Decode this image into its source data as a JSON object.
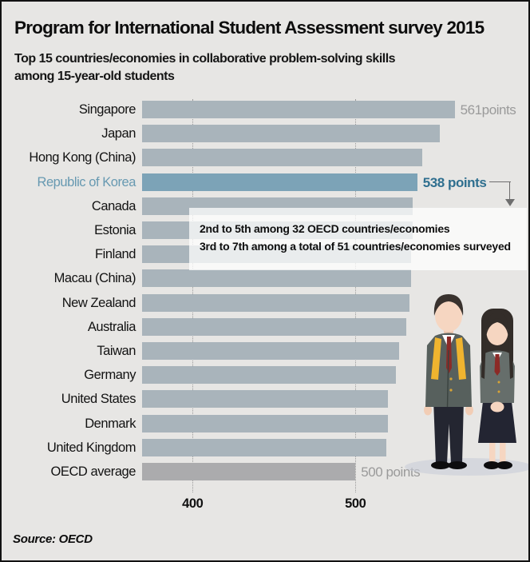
{
  "header": {
    "title": "Program for International Student Assessment survey 2015",
    "subtitle_line1": "Top 15 countries/economies in collaborative problem-solving skills",
    "subtitle_line2": "among 15-year-old students"
  },
  "chart_data": {
    "type": "bar",
    "orientation": "horizontal",
    "title": "Program for International Student Assessment survey 2015",
    "subtitle": "Top 15 countries/economies in collaborative problem-solving skills among 15-year-old students",
    "categories": [
      "Singapore",
      "Japan",
      "Hong Kong (China)",
      "Republic of Korea",
      "Canada",
      "Estonia",
      "Finland",
      "Macau (China)",
      "New Zealand",
      "Australia",
      "Taiwan",
      "Germany",
      "United States",
      "Denmark",
      "United Kingdom",
      "OECD average"
    ],
    "values": [
      561,
      552,
      541,
      538,
      535,
      535,
      534,
      534,
      533,
      531,
      527,
      525,
      520,
      520,
      519,
      500
    ],
    "unit": "points",
    "x_axis": {
      "ticks": [
        400,
        500
      ],
      "min": 369,
      "max": 566,
      "grid_style": "dotted"
    },
    "highlight_index": 3,
    "oecd_average_index": 15,
    "value_labels": [
      {
        "index": 0,
        "text": "561points",
        "style": "gray"
      },
      {
        "index": 3,
        "text": "538 points",
        "style": "blue"
      },
      {
        "index": 15,
        "text": "500 points",
        "style": "gray"
      }
    ],
    "colors": {
      "bar": "#a9b4bb",
      "highlight_bar": "#7ca3b7",
      "oecd_bar": "#ababad",
      "gray_label": "#9a9a9a",
      "blue_label": "#2f6f8f",
      "highlight_category": "#6799b1"
    }
  },
  "annotation": {
    "line1": "2nd to 5th among 32 OECD countries/economies",
    "line2": "3rd to 7th among a total of 51 countries/economies surveyed"
  },
  "footer": {
    "source_label": "Source: OECD"
  },
  "illustration": {
    "name": "two-students-in-school-uniform"
  }
}
